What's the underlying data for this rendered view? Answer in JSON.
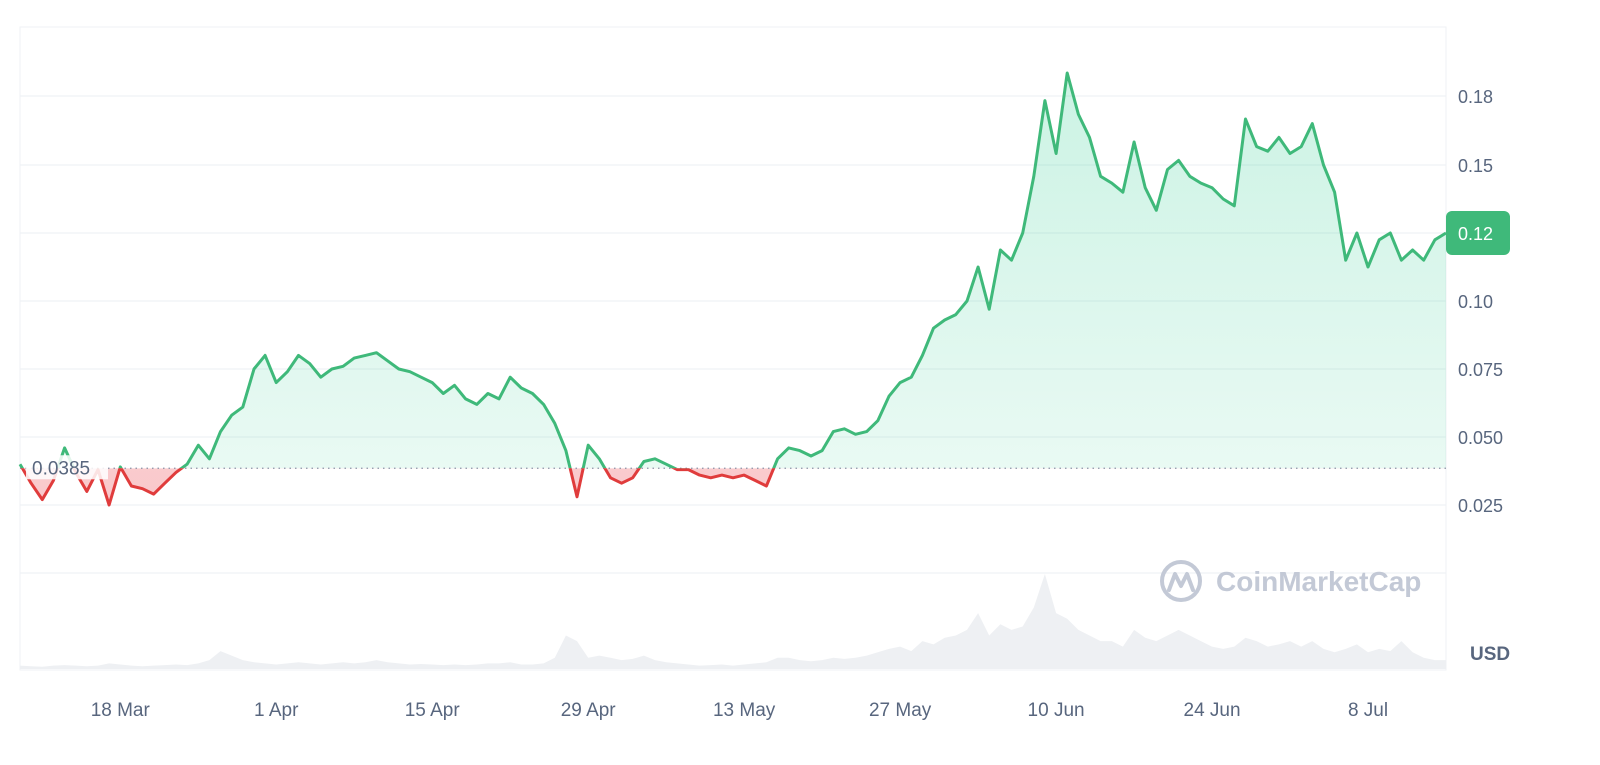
{
  "chart_data": {
    "type": "line",
    "y_ticks": [
      "0.18",
      "0.15",
      "0.12",
      "0.10",
      "0.075",
      "0.050",
      "0.025"
    ],
    "y_tick_values": [
      0.18,
      0.15,
      0.12,
      0.1,
      0.075,
      0.05,
      0.025
    ],
    "x_ticks": [
      "18 Mar",
      "1 Apr",
      "15 Apr",
      "29 Apr",
      "13 May",
      "27 May",
      "10 Jun",
      "24 Jun",
      "8 Jul"
    ],
    "x_tick_dates": [
      "2024-03-18",
      "2024-04-01",
      "2024-04-15",
      "2024-04-29",
      "2024-05-13",
      "2024-05-27",
      "2024-06-10",
      "2024-06-24",
      "2024-07-08"
    ],
    "x_range": [
      "2024-03-09",
      "2024-07-15"
    ],
    "ylim": [
      0.0,
      0.2
    ],
    "unit": "USD",
    "baseline": {
      "value": 0.0385,
      "label": "0.0385"
    },
    "current": {
      "value": 0.12,
      "label": "0.12"
    },
    "watermark": "CoinMarketCap",
    "colors": {
      "above": "#3fb97a",
      "below": "#e03c3c",
      "above_fill": "#16c784",
      "below_fill": "#ea3943",
      "volume": "#eef0f3",
      "grid": "#eff2f5",
      "badge": "#3fb97a"
    },
    "series": [
      {
        "x": [
          "2024-03-09",
          "2024-03-10",
          "2024-03-11",
          "2024-03-12",
          "2024-03-13",
          "2024-03-14",
          "2024-03-15",
          "2024-03-16",
          "2024-03-17",
          "2024-03-18",
          "2024-03-19",
          "2024-03-20",
          "2024-03-21",
          "2024-03-22",
          "2024-03-23",
          "2024-03-24",
          "2024-03-25",
          "2024-03-26",
          "2024-03-27",
          "2024-03-28",
          "2024-03-29",
          "2024-03-30",
          "2024-03-31",
          "2024-04-01",
          "2024-04-02",
          "2024-04-03",
          "2024-04-04",
          "2024-04-05",
          "2024-04-06",
          "2024-04-07",
          "2024-04-08",
          "2024-04-09",
          "2024-04-10",
          "2024-04-11",
          "2024-04-12",
          "2024-04-13",
          "2024-04-14",
          "2024-04-15",
          "2024-04-16",
          "2024-04-17",
          "2024-04-18",
          "2024-04-19",
          "2024-04-20",
          "2024-04-21",
          "2024-04-22",
          "2024-04-23",
          "2024-04-24",
          "2024-04-25",
          "2024-04-26",
          "2024-04-27",
          "2024-04-28",
          "2024-04-29",
          "2024-04-30",
          "2024-05-01",
          "2024-05-02",
          "2024-05-03",
          "2024-05-04",
          "2024-05-05",
          "2024-05-06",
          "2024-05-07",
          "2024-05-08",
          "2024-05-09",
          "2024-05-10",
          "2024-05-11",
          "2024-05-12",
          "2024-05-13",
          "2024-05-14",
          "2024-05-15",
          "2024-05-16",
          "2024-05-17",
          "2024-05-18",
          "2024-05-19",
          "2024-05-20",
          "2024-05-21",
          "2024-05-22",
          "2024-05-23",
          "2024-05-24",
          "2024-05-25",
          "2024-05-26",
          "2024-05-27",
          "2024-05-28",
          "2024-05-29",
          "2024-05-30",
          "2024-05-31",
          "2024-06-01",
          "2024-06-02",
          "2024-06-03",
          "2024-06-04",
          "2024-06-05",
          "2024-06-06",
          "2024-06-07",
          "2024-06-08",
          "2024-06-09",
          "2024-06-10",
          "2024-06-11",
          "2024-06-12",
          "2024-06-13",
          "2024-06-14",
          "2024-06-15",
          "2024-06-16",
          "2024-06-17",
          "2024-06-18",
          "2024-06-19",
          "2024-06-20",
          "2024-06-21",
          "2024-06-22",
          "2024-06-23",
          "2024-06-24",
          "2024-06-25",
          "2024-06-26",
          "2024-06-27",
          "2024-06-28",
          "2024-06-29",
          "2024-06-30",
          "2024-07-01",
          "2024-07-02",
          "2024-07-03",
          "2024-07-04",
          "2024-07-05",
          "2024-07-06",
          "2024-07-07",
          "2024-07-08",
          "2024-07-09",
          "2024-07-10",
          "2024-07-11",
          "2024-07-12",
          "2024-07-13",
          "2024-07-14",
          "2024-07-15"
        ],
        "values": [
          0.04,
          0.033,
          0.027,
          0.034,
          0.046,
          0.037,
          0.03,
          0.038,
          0.025,
          0.039,
          0.032,
          0.031,
          0.029,
          0.033,
          0.037,
          0.04,
          0.047,
          0.042,
          0.052,
          0.058,
          0.061,
          0.075,
          0.08,
          0.07,
          0.074,
          0.08,
          0.077,
          0.072,
          0.075,
          0.076,
          0.079,
          0.08,
          0.081,
          0.078,
          0.075,
          0.074,
          0.072,
          0.07,
          0.066,
          0.069,
          0.064,
          0.062,
          0.066,
          0.064,
          0.072,
          0.068,
          0.066,
          0.062,
          0.055,
          0.045,
          0.028,
          0.047,
          0.042,
          0.035,
          0.033,
          0.035,
          0.041,
          0.042,
          0.04,
          0.038,
          0.038,
          0.036,
          0.035,
          0.036,
          0.035,
          0.036,
          0.034,
          0.032,
          0.042,
          0.046,
          0.045,
          0.043,
          0.045,
          0.052,
          0.053,
          0.051,
          0.052,
          0.056,
          0.065,
          0.07,
          0.072,
          0.08,
          0.09,
          0.093,
          0.095,
          0.1,
          0.11,
          0.097,
          0.115,
          0.112,
          0.12,
          0.145,
          0.178,
          0.155,
          0.19,
          0.172,
          0.162,
          0.145,
          0.142,
          0.138,
          0.16,
          0.14,
          0.13,
          0.148,
          0.152,
          0.145,
          0.142,
          0.14,
          0.135,
          0.132,
          0.17,
          0.158,
          0.156,
          0.162,
          0.155,
          0.158,
          0.168,
          0.15,
          0.138,
          0.112,
          0.12,
          0.11,
          0.118,
          0.12,
          0.112,
          0.115,
          0.112,
          0.118,
          0.12
        ]
      }
    ],
    "volume": [
      0.3,
      0.25,
      0.2,
      0.3,
      0.35,
      0.3,
      0.25,
      0.3,
      0.5,
      0.4,
      0.3,
      0.25,
      0.3,
      0.35,
      0.4,
      0.35,
      0.5,
      0.8,
      1.6,
      1.2,
      0.8,
      0.6,
      0.5,
      0.4,
      0.5,
      0.6,
      0.5,
      0.4,
      0.5,
      0.6,
      0.5,
      0.6,
      0.8,
      0.6,
      0.5,
      0.4,
      0.45,
      0.4,
      0.35,
      0.4,
      0.35,
      0.4,
      0.5,
      0.5,
      0.6,
      0.4,
      0.4,
      0.5,
      1.0,
      3.0,
      2.5,
      1.0,
      1.2,
      1.0,
      0.8,
      0.9,
      1.2,
      0.8,
      0.6,
      0.5,
      0.4,
      0.3,
      0.35,
      0.4,
      0.3,
      0.4,
      0.5,
      0.6,
      1.0,
      1.0,
      0.8,
      0.7,
      0.8,
      1.0,
      0.9,
      1.0,
      1.2,
      1.5,
      1.8,
      2.0,
      1.6,
      2.5,
      2.2,
      2.8,
      3.0,
      3.5,
      5.0,
      3.0,
      4.0,
      3.5,
      3.8,
      5.5,
      8.5,
      5.0,
      4.5,
      3.5,
      3.0,
      2.5,
      2.5,
      2.0,
      3.5,
      2.8,
      2.5,
      3.0,
      3.5,
      3.0,
      2.5,
      2.0,
      1.8,
      2.0,
      2.8,
      2.5,
      2.0,
      2.2,
      2.5,
      2.0,
      2.5,
      1.8,
      1.5,
      1.8,
      2.2,
      1.5,
      1.8,
      1.6,
      2.5,
      1.5,
      1.0,
      0.8,
      0.8
    ]
  }
}
